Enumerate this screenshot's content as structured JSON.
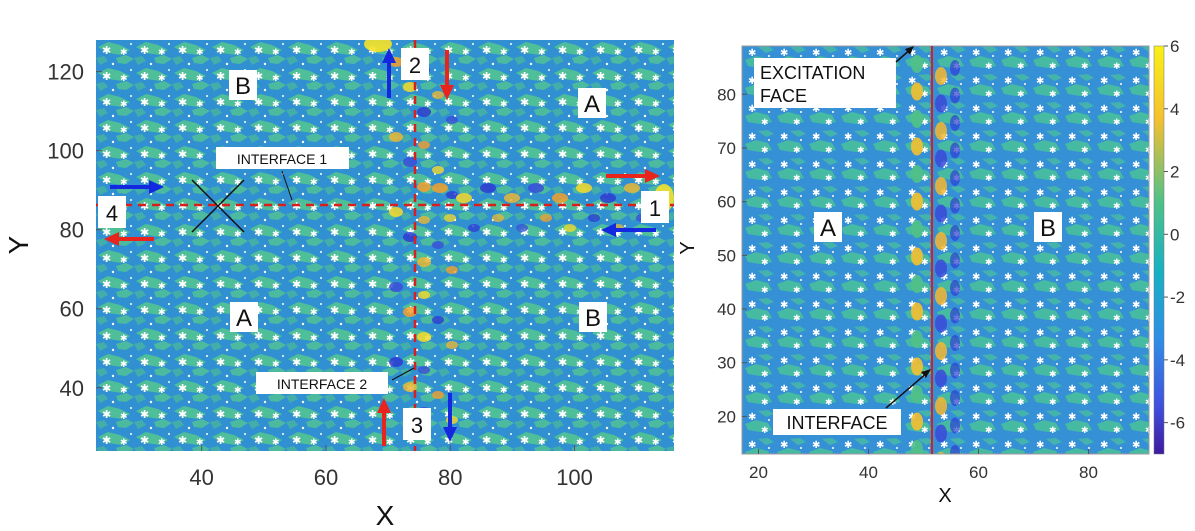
{
  "chart_data": [
    {
      "type": "heatmap",
      "title": "",
      "xlabel": "X",
      "ylabel": "Y",
      "xlim": [
        23,
        116
      ],
      "ylim": [
        24,
        128
      ],
      "xticks": [
        40,
        60,
        80,
        100
      ],
      "yticks": [
        40,
        60,
        80,
        100,
        120
      ],
      "interfaces": [
        {
          "label": "INTERFACE 1",
          "orientation": "horizontal",
          "y": 86
        },
        {
          "label": "INTERFACE 2",
          "orientation": "vertical",
          "x": 75
        }
      ],
      "regions": [
        {
          "label": "B",
          "x": 43,
          "y": 121
        },
        {
          "label": "A",
          "x": 104,
          "y": 116
        },
        {
          "label": "A",
          "x": 43,
          "y": 63
        },
        {
          "label": "B",
          "x": 104,
          "y": 63
        }
      ],
      "ports": [
        {
          "label": "1",
          "x": 112,
          "y": 86
        },
        {
          "label": "2",
          "x": 75,
          "y": 124
        },
        {
          "label": "3",
          "x": 75,
          "y": 29
        },
        {
          "label": "4",
          "x": 26,
          "y": 86
        }
      ],
      "annotations": [
        {
          "text": "INTERFACE 1",
          "x": 52,
          "y": 95
        },
        {
          "text": "INTERFACE 2",
          "x": 63,
          "y": 40
        }
      ]
    },
    {
      "type": "heatmap",
      "title": "",
      "xlabel": "X",
      "ylabel": "Y",
      "xlim": [
        17,
        91
      ],
      "ylim": [
        13,
        89
      ],
      "xticks": [
        20,
        40,
        60,
        80
      ],
      "yticks": [
        20,
        30,
        40,
        50,
        60,
        70,
        80
      ],
      "interface_x": 52,
      "excitation_x": 49,
      "colorbar": {
        "min": -7,
        "max": 6,
        "ticks": [
          6,
          4,
          2,
          0,
          -2,
          -4,
          -6
        ]
      },
      "regions": [
        {
          "label": "A",
          "x": 33,
          "y": 58
        },
        {
          "label": "B",
          "x": 80,
          "y": 58
        }
      ],
      "annotations": [
        {
          "text": "EXCITATION\nFACE",
          "x": 34,
          "y": 83
        },
        {
          "text": "INTERFACE",
          "x": 36,
          "y": 22
        }
      ]
    }
  ],
  "colors": {
    "bg_blue": "#2e8ad3",
    "stripe_green": "#4dbd98",
    "hot_orange": "#f4a02c",
    "hot_yellow": "#f6e12a",
    "deep_blue": "#2e3bd1",
    "arrow_red": "#e8241d",
    "arrow_blue": "#1428e0",
    "interface_red": "#d91e1e"
  }
}
